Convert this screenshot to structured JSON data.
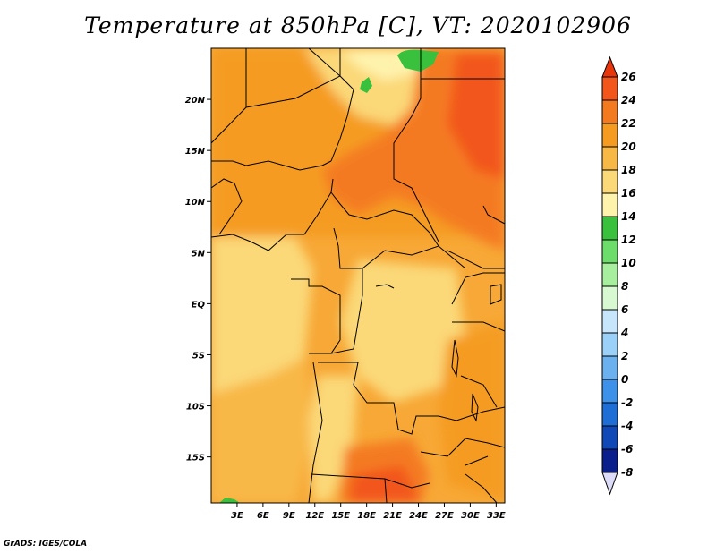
{
  "title": "Temperature at 850hPa [C], VT: 2020102906",
  "footer": "GrADS: IGES/COLA",
  "map": {
    "lon_labels": [
      "3E",
      "6E",
      "9E",
      "12E",
      "15E",
      "18E",
      "21E",
      "24E",
      "27E",
      "30E",
      "33E"
    ],
    "lat_labels": [
      "20N",
      "15N",
      "10N",
      "5N",
      "EQ",
      "5S",
      "10S",
      "15S"
    ],
    "lon_range": [
      0,
      34
    ],
    "lat_range": [
      -19.5,
      25
    ]
  },
  "colorbar": {
    "levels": [
      "26",
      "24",
      "22",
      "20",
      "18",
      "16",
      "14",
      "12",
      "10",
      "8",
      "6",
      "4",
      "2",
      "0",
      "-2",
      "-4",
      "-6",
      "-8"
    ],
    "colors": [
      "#e8350a",
      "#f2561a",
      "#f47a20",
      "#f59b22",
      "#f8b846",
      "#fbd878",
      "#fef3ad",
      "#39c03d",
      "#6cdc6a",
      "#a7ee9e",
      "#d8f8d2",
      "#c8e6fb",
      "#9bd0f8",
      "#6bb1f0",
      "#3d91e8",
      "#1e6ed6",
      "#1048b8",
      "#0a1e8c",
      "#06086a"
    ],
    "top_color": "#e8350a",
    "bottom_color": "#dcdcf8"
  }
}
